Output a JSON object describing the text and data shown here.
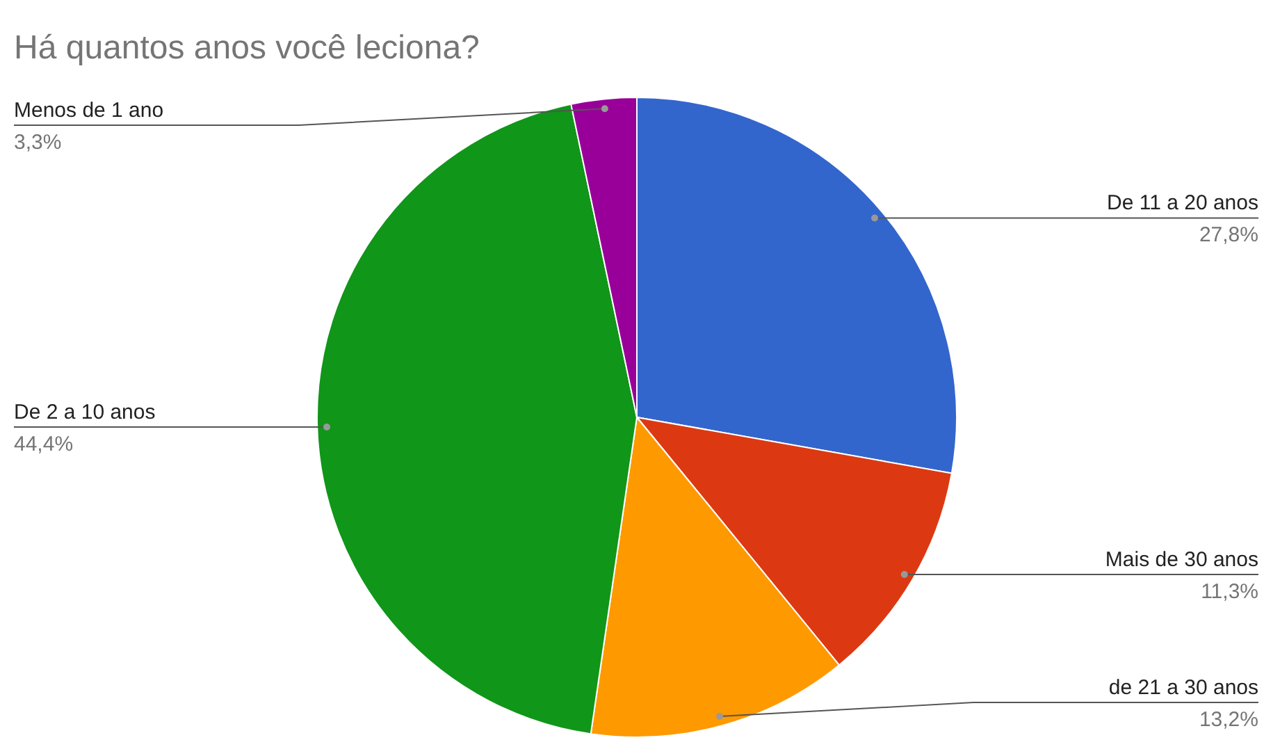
{
  "chart_data": {
    "type": "pie",
    "title": "Há quantos anos você leciona?",
    "categories": [
      "De 11 a 20 anos",
      "Mais de 30 anos",
      "de 21 a 30 anos",
      "De 2 a 10 anos",
      "Menos de 1 ano"
    ],
    "values": [
      27.8,
      11.3,
      13.2,
      44.4,
      3.3
    ],
    "value_labels": [
      "27,8%",
      "11,3%",
      "13,2%",
      "44,4%",
      "3,3%"
    ],
    "colors": [
      "#3366cc",
      "#dc3912",
      "#ff9900",
      "#109618",
      "#990099"
    ]
  }
}
